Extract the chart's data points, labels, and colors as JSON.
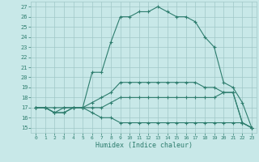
{
  "xlabel": "Humidex (Indice chaleur)",
  "x": [
    0,
    1,
    2,
    3,
    4,
    5,
    6,
    7,
    8,
    9,
    10,
    11,
    12,
    13,
    14,
    15,
    16,
    17,
    18,
    19,
    20,
    21,
    22,
    23
  ],
  "line_bottom": [
    17,
    17,
    16.5,
    16.5,
    17,
    17,
    16.5,
    16,
    16,
    15.5,
    15.5,
    15.5,
    15.5,
    15.5,
    15.5,
    15.5,
    15.5,
    15.5,
    15.5,
    15.5,
    15.5,
    15.5,
    15.5,
    15
  ],
  "line_low": [
    17,
    17,
    16.5,
    17,
    17,
    17,
    17,
    17,
    17.5,
    18,
    18,
    18,
    18,
    18,
    18,
    18,
    18,
    18,
    18,
    18,
    18.5,
    18.5,
    15.5,
    15
  ],
  "line_mid": [
    17,
    17,
    17,
    17,
    17,
    17,
    17.5,
    18,
    18.5,
    19.5,
    19.5,
    19.5,
    19.5,
    19.5,
    19.5,
    19.5,
    19.5,
    19.5,
    19,
    19,
    18.5,
    18.5,
    15.5,
    15
  ],
  "line_main": [
    17,
    17,
    16.5,
    16.5,
    17,
    17,
    20.5,
    20.5,
    23.5,
    26,
    26,
    26.5,
    26.5,
    27,
    26.5,
    26,
    26,
    25.5,
    24,
    23,
    19.5,
    19,
    17.5,
    15
  ],
  "color": "#2e7d6e",
  "bg_color": "#c8e8e8",
  "grid_color": "#a0c8c8",
  "ylim": [
    14.5,
    27.5
  ],
  "xlim": [
    -0.5,
    23.5
  ],
  "yticks": [
    15,
    16,
    17,
    18,
    19,
    20,
    21,
    22,
    23,
    24,
    25,
    26,
    27
  ],
  "xticks": [
    0,
    1,
    2,
    3,
    4,
    5,
    6,
    7,
    8,
    9,
    10,
    11,
    12,
    13,
    14,
    15,
    16,
    17,
    18,
    19,
    20,
    21,
    22,
    23
  ]
}
